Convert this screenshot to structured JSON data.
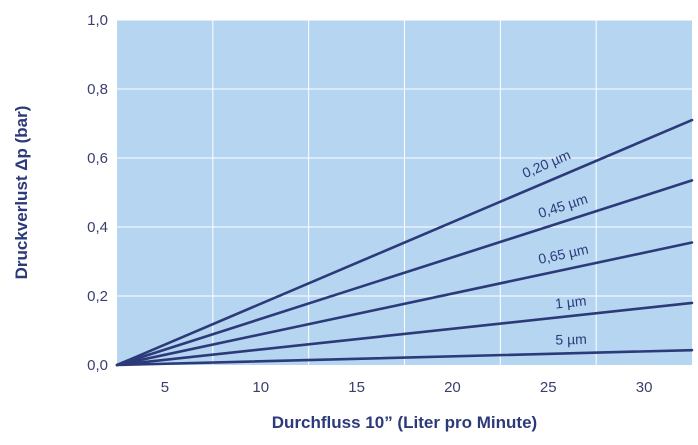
{
  "chart_data": {
    "type": "line",
    "xlabel": "Durchfluss 10” (Liter pro Minute)",
    "ylabel": "Druckverlust Δp (bar)",
    "xlim": [
      2.5,
      32.5
    ],
    "ylim": [
      0,
      1
    ],
    "x_ticks": [
      5,
      10,
      15,
      20,
      25,
      30
    ],
    "x_tick_labels": [
      "5",
      "10",
      "15",
      "20",
      "25",
      "30"
    ],
    "y_ticks": [
      0,
      0.2,
      0.4,
      0.6,
      0.8,
      1.0
    ],
    "y_tick_labels": [
      "0,0",
      "0,2",
      "0,4",
      "0,6",
      "0,8",
      "1,0"
    ],
    "grid": true,
    "colors": {
      "plot_background": "#b5d5f0",
      "grid": "#ffffff",
      "series_line": "#2c3a7a"
    },
    "series": [
      {
        "name": "0,20 µm",
        "x": [
          2.5,
          32.5
        ],
        "y": [
          0,
          0.71
        ]
      },
      {
        "name": "0,45 µm",
        "x": [
          2.5,
          32.5
        ],
        "y": [
          0,
          0.535
        ]
      },
      {
        "name": "0,65 µm",
        "x": [
          2.5,
          32.5
        ],
        "y": [
          0,
          0.355
        ]
      },
      {
        "name": "1 µm",
        "x": [
          2.5,
          32.5
        ],
        "y": [
          0,
          0.18
        ]
      },
      {
        "name": "5 µm",
        "x": [
          2.5,
          32.5
        ],
        "y": [
          0,
          0.043
        ]
      }
    ]
  }
}
